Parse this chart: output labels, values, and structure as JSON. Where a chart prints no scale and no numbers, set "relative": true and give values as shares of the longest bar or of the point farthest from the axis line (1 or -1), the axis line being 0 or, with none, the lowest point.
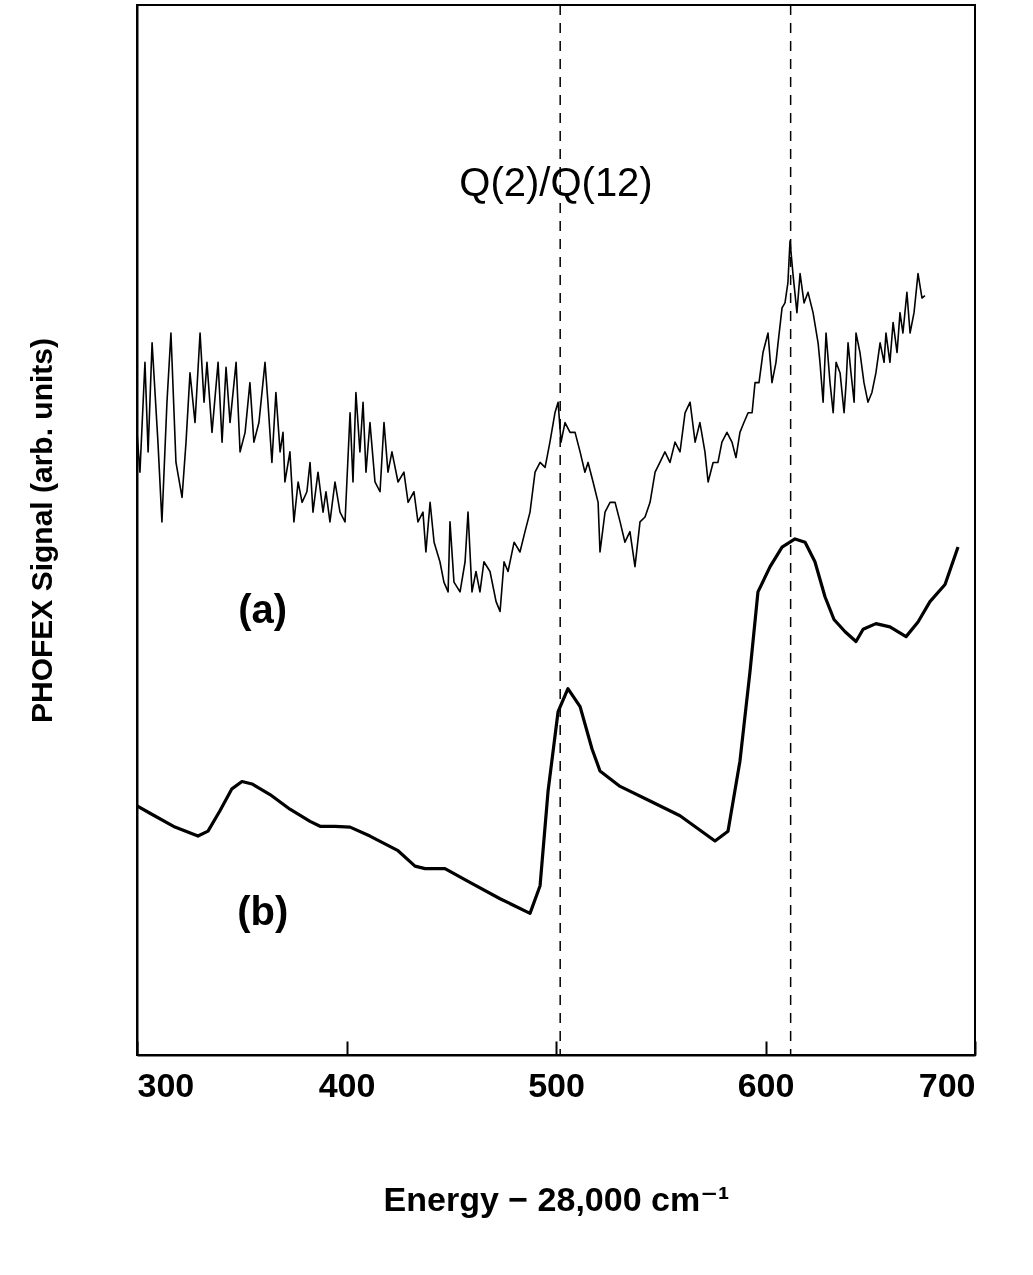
{
  "chart_data": {
    "type": "line",
    "title": "Q(2)/Q(12)",
    "xlabel": "Energy − 28,000 cm⁻¹",
    "ylabel": "PHOFEX Signal (arb. units)",
    "relative": true,
    "xlim": [
      300,
      700
    ],
    "xticks": [
      300,
      400,
      500,
      600,
      700
    ],
    "tick_labels": "x",
    "grid": false,
    "series": [
      {
        "name": "(a)",
        "color": "#000000",
        "x": [
          300.0,
          301.4,
          303.8,
          305.3,
          307.2,
          310.0,
          311.9,
          314.3,
          316.2,
          318.6,
          321.5,
          323.4,
          325.3,
          327.7,
          330.1,
          332.0,
          333.4,
          335.8,
          338.7,
          340.6,
          342.5,
          344.4,
          347.3,
          349.2,
          351.6,
          353.9,
          355.8,
          358.2,
          361.1,
          362.5,
          364.4,
          366.3,
          368.3,
          369.7,
          370.6,
          373.0,
          374.9,
          376.9,
          378.8,
          381.1,
          382.6,
          384.0,
          386.4,
          388.8,
          390.2,
          392.1,
          394.5,
          396.9,
          399.3,
          401.7,
          403.1,
          404.5,
          406.4,
          407.9,
          409.3,
          411.2,
          413.6,
          416.0,
          417.9,
          419.8,
          421.7,
          424.6,
          427.4,
          429.4,
          432.2,
          434.1,
          436.5,
          437.9,
          439.9,
          441.8,
          444.6,
          446.5,
          448.5,
          449.4,
          451.3,
          454.2,
          456.6,
          458.0,
          459.9,
          461.8,
          463.7,
          465.6,
          468.5,
          471.4,
          473.3,
          475.2,
          477.1,
          480.0,
          482.8,
          485.2,
          487.6,
          490.0,
          492.4,
          494.8,
          497.1,
          499.5,
          501.0,
          502.4,
          504.3,
          506.7,
          509.1,
          511.5,
          513.8,
          515.3,
          517.7,
          520.1,
          521.0,
          523.4,
          525.8,
          528.2,
          530.6,
          532.9,
          535.3,
          537.7,
          540.1,
          542.5,
          544.9,
          547.3,
          549.6,
          552.0,
          554.4,
          556.8,
          559.2,
          561.6,
          564.0,
          566.4,
          568.7,
          571.1,
          572.6,
          575.0,
          577.3,
          579.2,
          581.6,
          584.0,
          585.9,
          587.8,
          589.7,
          591.7,
          593.6,
          595.0,
          596.9,
          598.8,
          601.2,
          603.1,
          605.0,
          606.0,
          607.9,
          609.3,
          610.7,
          611.7,
          613.1,
          615.0,
          616.5,
          618.4,
          620.3,
          622.7,
          625.1,
          626.0,
          627.5,
          628.9,
          630.8,
          632.3,
          633.7,
          635.6,
          637.5,
          638.5,
          639.4,
          640.8,
          642.3,
          643.2,
          645.1,
          647.0,
          648.9,
          650.8,
          652.7,
          654.7,
          656.6,
          657.5,
          659.4,
          660.9,
          662.8,
          664.2,
          665.6,
          667.5,
          669.0,
          670.9,
          672.8,
          674.7,
          676.1
        ],
        "values": [
          0.765,
          0.716,
          0.851,
          0.741,
          0.875,
          0.753,
          0.655,
          0.802,
          0.887,
          0.728,
          0.685,
          0.753,
          0.838,
          0.777,
          0.887,
          0.802,
          0.851,
          0.765,
          0.851,
          0.753,
          0.845,
          0.777,
          0.851,
          0.741,
          0.765,
          0.826,
          0.753,
          0.777,
          0.851,
          0.802,
          0.728,
          0.814,
          0.741,
          0.765,
          0.704,
          0.741,
          0.655,
          0.704,
          0.679,
          0.692,
          0.728,
          0.667,
          0.716,
          0.667,
          0.692,
          0.655,
          0.704,
          0.667,
          0.655,
          0.789,
          0.704,
          0.814,
          0.741,
          0.802,
          0.716,
          0.777,
          0.704,
          0.692,
          0.777,
          0.716,
          0.741,
          0.704,
          0.716,
          0.679,
          0.692,
          0.655,
          0.667,
          0.618,
          0.679,
          0.63,
          0.606,
          0.581,
          0.569,
          0.655,
          0.581,
          0.569,
          0.606,
          0.667,
          0.569,
          0.594,
          0.569,
          0.606,
          0.594,
          0.557,
          0.545,
          0.606,
          0.594,
          0.63,
          0.618,
          0.643,
          0.667,
          0.716,
          0.728,
          0.722,
          0.753,
          0.789,
          0.802,
          0.753,
          0.777,
          0.765,
          0.765,
          0.741,
          0.716,
          0.728,
          0.704,
          0.679,
          0.618,
          0.667,
          0.679,
          0.679,
          0.655,
          0.63,
          0.643,
          0.6,
          0.655,
          0.661,
          0.679,
          0.716,
          0.728,
          0.741,
          0.728,
          0.753,
          0.741,
          0.789,
          0.802,
          0.753,
          0.777,
          0.741,
          0.704,
          0.728,
          0.728,
          0.753,
          0.765,
          0.753,
          0.734,
          0.765,
          0.777,
          0.789,
          0.789,
          0.826,
          0.826,
          0.863,
          0.887,
          0.826,
          0.851,
          0.875,
          0.918,
          0.924,
          0.949,
          1.0,
          0.96,
          0.912,
          0.96,
          0.924,
          0.937,
          0.912,
          0.875,
          0.851,
          0.802,
          0.887,
          0.826,
          0.789,
          0.851,
          0.838,
          0.789,
          0.826,
          0.875,
          0.838,
          0.802,
          0.887,
          0.863,
          0.826,
          0.802,
          0.814,
          0.838,
          0.875,
          0.851,
          0.887,
          0.851,
          0.9,
          0.863,
          0.912,
          0.887,
          0.937,
          0.887,
          0.912,
          0.96,
          0.93,
          0.933
        ]
      },
      {
        "name": "(b)",
        "color": "#000000",
        "x": [
          300.0,
          306.2,
          318.1,
          329.1,
          333.9,
          339.6,
          345.3,
          350.1,
          354.9,
          363.5,
          373.0,
          382.6,
          387.4,
          394.5,
          401.7,
          411.2,
          424.6,
          432.7,
          437.5,
          447.0,
          458.9,
          473.3,
          487.6,
          492.4,
          496.2,
          501.0,
          505.7,
          511.5,
          517.2,
          521.0,
          530.6,
          544.9,
          559.2,
          575.9,
          582.1,
          587.8,
          592.6,
          596.4,
          602.2,
          607.9,
          614.1,
          618.9,
          623.6,
          628.4,
          632.7,
          638.0,
          643.2,
          646.6,
          652.7,
          659.4,
          667.1,
          672.8,
          678.5,
          685.7,
          691.9
        ],
        "values": [
          0.306,
          0.297,
          0.28,
          0.269,
          0.275,
          0.3,
          0.327,
          0.336,
          0.333,
          0.32,
          0.302,
          0.287,
          0.281,
          0.281,
          0.28,
          0.269,
          0.251,
          0.232,
          0.229,
          0.229,
          0.212,
          0.192,
          0.174,
          0.208,
          0.324,
          0.422,
          0.45,
          0.428,
          0.376,
          0.349,
          0.33,
          0.312,
          0.294,
          0.263,
          0.275,
          0.361,
          0.471,
          0.569,
          0.6,
          0.624,
          0.634,
          0.63,
          0.606,
          0.563,
          0.535,
          0.52,
          0.508,
          0.523,
          0.53,
          0.526,
          0.514,
          0.532,
          0.557,
          0.578,
          0.624
        ]
      }
    ],
    "ref_lines": [
      {
        "axis": "x",
        "value": 502,
        "line_style": "dashed"
      },
      {
        "axis": "x",
        "value": 612,
        "line_style": "dashed"
      }
    ]
  }
}
